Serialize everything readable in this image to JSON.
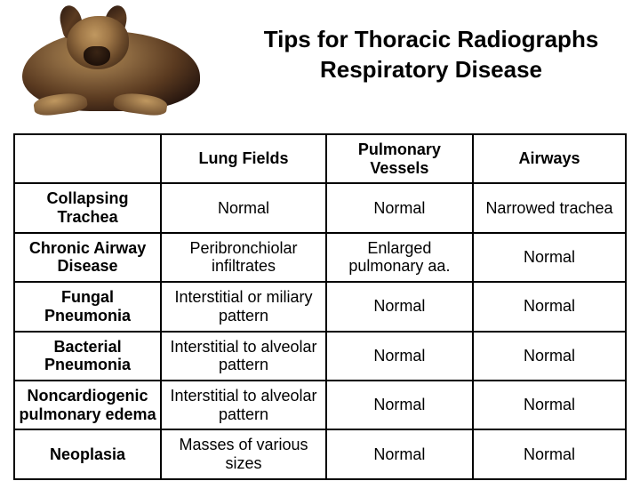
{
  "title": {
    "line1": "Tips for Thoracic Radiographs",
    "line2": "Respiratory Disease"
  },
  "table": {
    "columns": [
      "Lung Fields",
      "Pulmonary Vessels",
      "Airways"
    ],
    "rows": [
      {
        "header": "Collapsing Trachea",
        "cells": [
          "Normal",
          "Normal",
          "Narrowed trachea"
        ]
      },
      {
        "header": "Chronic Airway Disease",
        "cells": [
          "Peribronchiolar infiltrates",
          "Enlarged pulmonary aa.",
          "Normal"
        ]
      },
      {
        "header": "Fungal Pneumonia",
        "cells": [
          "Interstitial or miliary pattern",
          "Normal",
          "Normal"
        ]
      },
      {
        "header": "Bacterial Pneumonia",
        "cells": [
          "Interstitial to alveolar pattern",
          "Normal",
          "Normal"
        ]
      },
      {
        "header": "Noncardiogenic pulmonary edema",
        "cells": [
          "Interstitial to alveolar pattern",
          "Normal",
          "Normal"
        ]
      },
      {
        "header": "Neoplasia",
        "cells": [
          "Masses of various sizes",
          "Normal",
          "Normal"
        ]
      }
    ],
    "border_color": "#000000",
    "text_color": "#000000",
    "background_color": "#ffffff",
    "header_fontsize": 18,
    "cell_fontsize": 18,
    "column_widths_pct": [
      24,
      27,
      24,
      25
    ]
  }
}
